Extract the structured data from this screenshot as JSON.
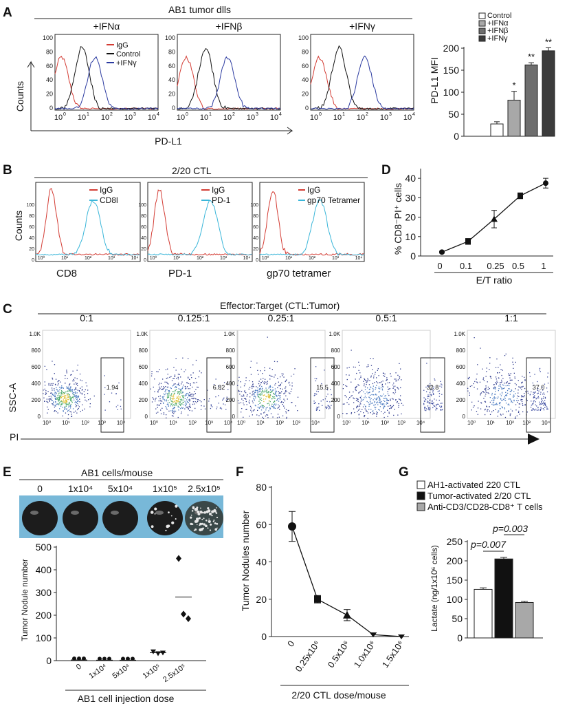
{
  "colors": {
    "igg": "#d33b33",
    "control": "#111111",
    "ifn": "#2b3aa0",
    "cyan": "#3ab6d9",
    "bar_control": "#ffffff",
    "bar_a": "#a8a8a8",
    "bar_b": "#6e6e6e",
    "bar_g": "#3c3c3c"
  },
  "panelA": {
    "letter": "A",
    "title": "AB1 tumor dlls",
    "xlabel": "PD-L1",
    "ylabel": "Counts",
    "sub": [
      {
        "label": "+IFNα",
        "yticks": [
          "100",
          "80",
          "60",
          "40",
          "20",
          "0"
        ],
        "xticks": [
          "10",
          "10",
          "10",
          "10",
          "10"
        ],
        "xexp": [
          "0",
          "1",
          "2",
          "3",
          "4"
        ],
        "legend": [
          {
            "label": "IgG",
            "color": "#d33b33"
          },
          {
            "label": "Control",
            "color": "#111111"
          },
          {
            "label": "+IFNγ",
            "color": "#2b3aa0"
          }
        ],
        "peaks": [
          0.25,
          1.05,
          1.55
        ]
      },
      {
        "label": "+IFNβ",
        "yticks": [
          "100",
          "80",
          "60",
          "40",
          "20",
          "0"
        ],
        "xticks": [
          "10",
          "10",
          "10",
          "10",
          "10"
        ],
        "xexp": [
          "0",
          "1",
          "2",
          "3",
          "4"
        ],
        "legend": [],
        "peaks": [
          0.35,
          1.1,
          1.95
        ]
      },
      {
        "label": "+IFNγ",
        "yticks": [
          "100",
          "80",
          "60",
          "40",
          "20",
          "0"
        ],
        "xticks": [
          "10",
          "10",
          "10",
          "10",
          "10"
        ],
        "xexp": [
          "0",
          "1",
          "2",
          "3",
          "4"
        ],
        "legend": [],
        "peaks": [
          0.35,
          1.1,
          2.1
        ]
      }
    ],
    "bar": {
      "type": "bar",
      "ylabel": "PD-L1 MFI",
      "yticks": [
        "200",
        "150",
        "100",
        "50",
        "0"
      ],
      "ylim": [
        0,
        200
      ],
      "legend": [
        "Control",
        "+IFNα",
        "+IFNβ",
        "+IFNγ"
      ],
      "categories": [
        "Control",
        "+IFNα",
        "+IFNβ",
        "+IFNγ"
      ],
      "values": [
        28,
        82,
        162,
        194
      ],
      "errors": [
        5,
        20,
        5,
        7
      ],
      "stars": [
        "",
        "*",
        "**",
        "**"
      ]
    }
  },
  "panelB": {
    "letter": "B",
    "title": "2/20 CTL",
    "ylabel": "Counts",
    "sub": [
      {
        "xlabel": "CD8",
        "legend": [
          {
            "label": "IgG",
            "color": "#d33b33"
          },
          {
            "label": "CD8l",
            "color": "#3ab6d9"
          }
        ],
        "yticks": [
          "100",
          "80",
          "60",
          "40",
          "20",
          "0"
        ],
        "xticks": [
          "10⁰",
          "10¹",
          "10²",
          "10³",
          "10⁴"
        ]
      },
      {
        "xlabel": "PD-1",
        "legend": [
          {
            "label": "IgG",
            "color": "#d33b33"
          },
          {
            "label": "PD-1",
            "color": "#3ab6d9"
          }
        ],
        "yticks": [
          "100",
          "80",
          "60",
          "40",
          "20",
          "0"
        ],
        "xticks": [
          "10⁰",
          "10¹",
          "10²",
          "10³",
          "10⁴"
        ]
      },
      {
        "xlabel": "gp70 tetramer",
        "legend": [
          {
            "label": "IgG",
            "color": "#d33b33"
          },
          {
            "label": "gp70 Tetramer",
            "color": "#3ab6d9"
          }
        ],
        "yticks": [
          "100",
          "80",
          "60",
          "40",
          "20",
          "0"
        ],
        "xticks": [
          "10⁰",
          "10¹",
          "10²",
          "10³",
          "10⁴"
        ]
      }
    ]
  },
  "panelD": {
    "letter": "D",
    "type": "line",
    "ylabel": "% CD8⁻PI⁺ cells",
    "xlabel": "E/T ratio",
    "yticks": [
      "40",
      "30",
      "20",
      "10",
      "0"
    ],
    "ylim": [
      0,
      45
    ],
    "categories": [
      "0",
      "0.1",
      "0.25",
      "0.5",
      "1"
    ],
    "values": [
      2,
      7.5,
      19,
      31,
      37.5
    ],
    "errors": [
      0.5,
      1.5,
      4.5,
      1.5,
      2.5
    ]
  },
  "panelC": {
    "letter": "C",
    "title": "Effector:Target   (CTL:Tumor)",
    "ylabel": "SSC-A",
    "xlabel": "PI",
    "yticks": [
      "1.0K",
      "800",
      "600",
      "400",
      "200",
      "0"
    ],
    "xticks": [
      "10⁰",
      "10¹",
      "10²",
      "10³",
      "10⁴"
    ],
    "plots": [
      {
        "label": "0:1",
        "gate": "1.94"
      },
      {
        "label": "0.125:1",
        "gate": "6.82"
      },
      {
        "label": "0.25:1",
        "gate": "15.5"
      },
      {
        "label": "0.5:1",
        "gate": "32.8"
      },
      {
        "label": "1:1",
        "gate": "37.0"
      }
    ]
  },
  "panelE": {
    "letter": "E",
    "title": "AB1 cells/mouse",
    "doses": [
      "0",
      "1x10⁴",
      "5x10⁴",
      "1x10⁵",
      "2.5x10⁵"
    ],
    "ylabel": "Tumor Nodule number",
    "xlabel": "AB1 cell injection dose",
    "yticks": [
      "500",
      "400",
      "300",
      "200",
      "100",
      "0"
    ],
    "ylim": [
      0,
      500
    ],
    "xticks": [
      "0",
      "1x10⁴",
      "5x10⁴",
      "1x10⁵",
      "2.5x10⁵"
    ],
    "points": [
      [
        3,
        3,
        3
      ],
      [
        2,
        2,
        2
      ],
      [
        2,
        2,
        2
      ],
      [
        40,
        32,
        35
      ],
      [
        450,
        205,
        185
      ]
    ],
    "means": [
      3,
      2,
      2,
      35,
      280
    ]
  },
  "panelF": {
    "letter": "F",
    "type": "line",
    "ylabel": "Tumor Nodules number",
    "xlabel": "2/20 CTL dose/mouse",
    "yticks": [
      "80",
      "60",
      "40",
      "20",
      "0"
    ],
    "ylim": [
      0,
      80
    ],
    "categories": [
      "0",
      "0.25x10⁶",
      "0.5x10⁶",
      "1.0x10⁶",
      "1.5x10⁶"
    ],
    "values": [
      59,
      20,
      11.5,
      1,
      0
    ],
    "errors": [
      8,
      2,
      3,
      1,
      0
    ]
  },
  "panelG": {
    "letter": "G",
    "type": "bar",
    "ylabel": "Lactate (ng/1x10⁶ cells)",
    "yticks": [
      "250",
      "200",
      "150",
      "100",
      "50",
      "0"
    ],
    "ylim": [
      0,
      250
    ],
    "legend": [
      "AH1-activated 220 CTL",
      "Tumor-activated 2/20 CTL",
      "Anti-CD3/CD28-CD8⁺ T cells"
    ],
    "values": [
      126,
      205,
      92
    ],
    "errors": [
      4,
      4,
      3
    ],
    "p1": "p=0.007",
    "p2": "p=0.003"
  }
}
